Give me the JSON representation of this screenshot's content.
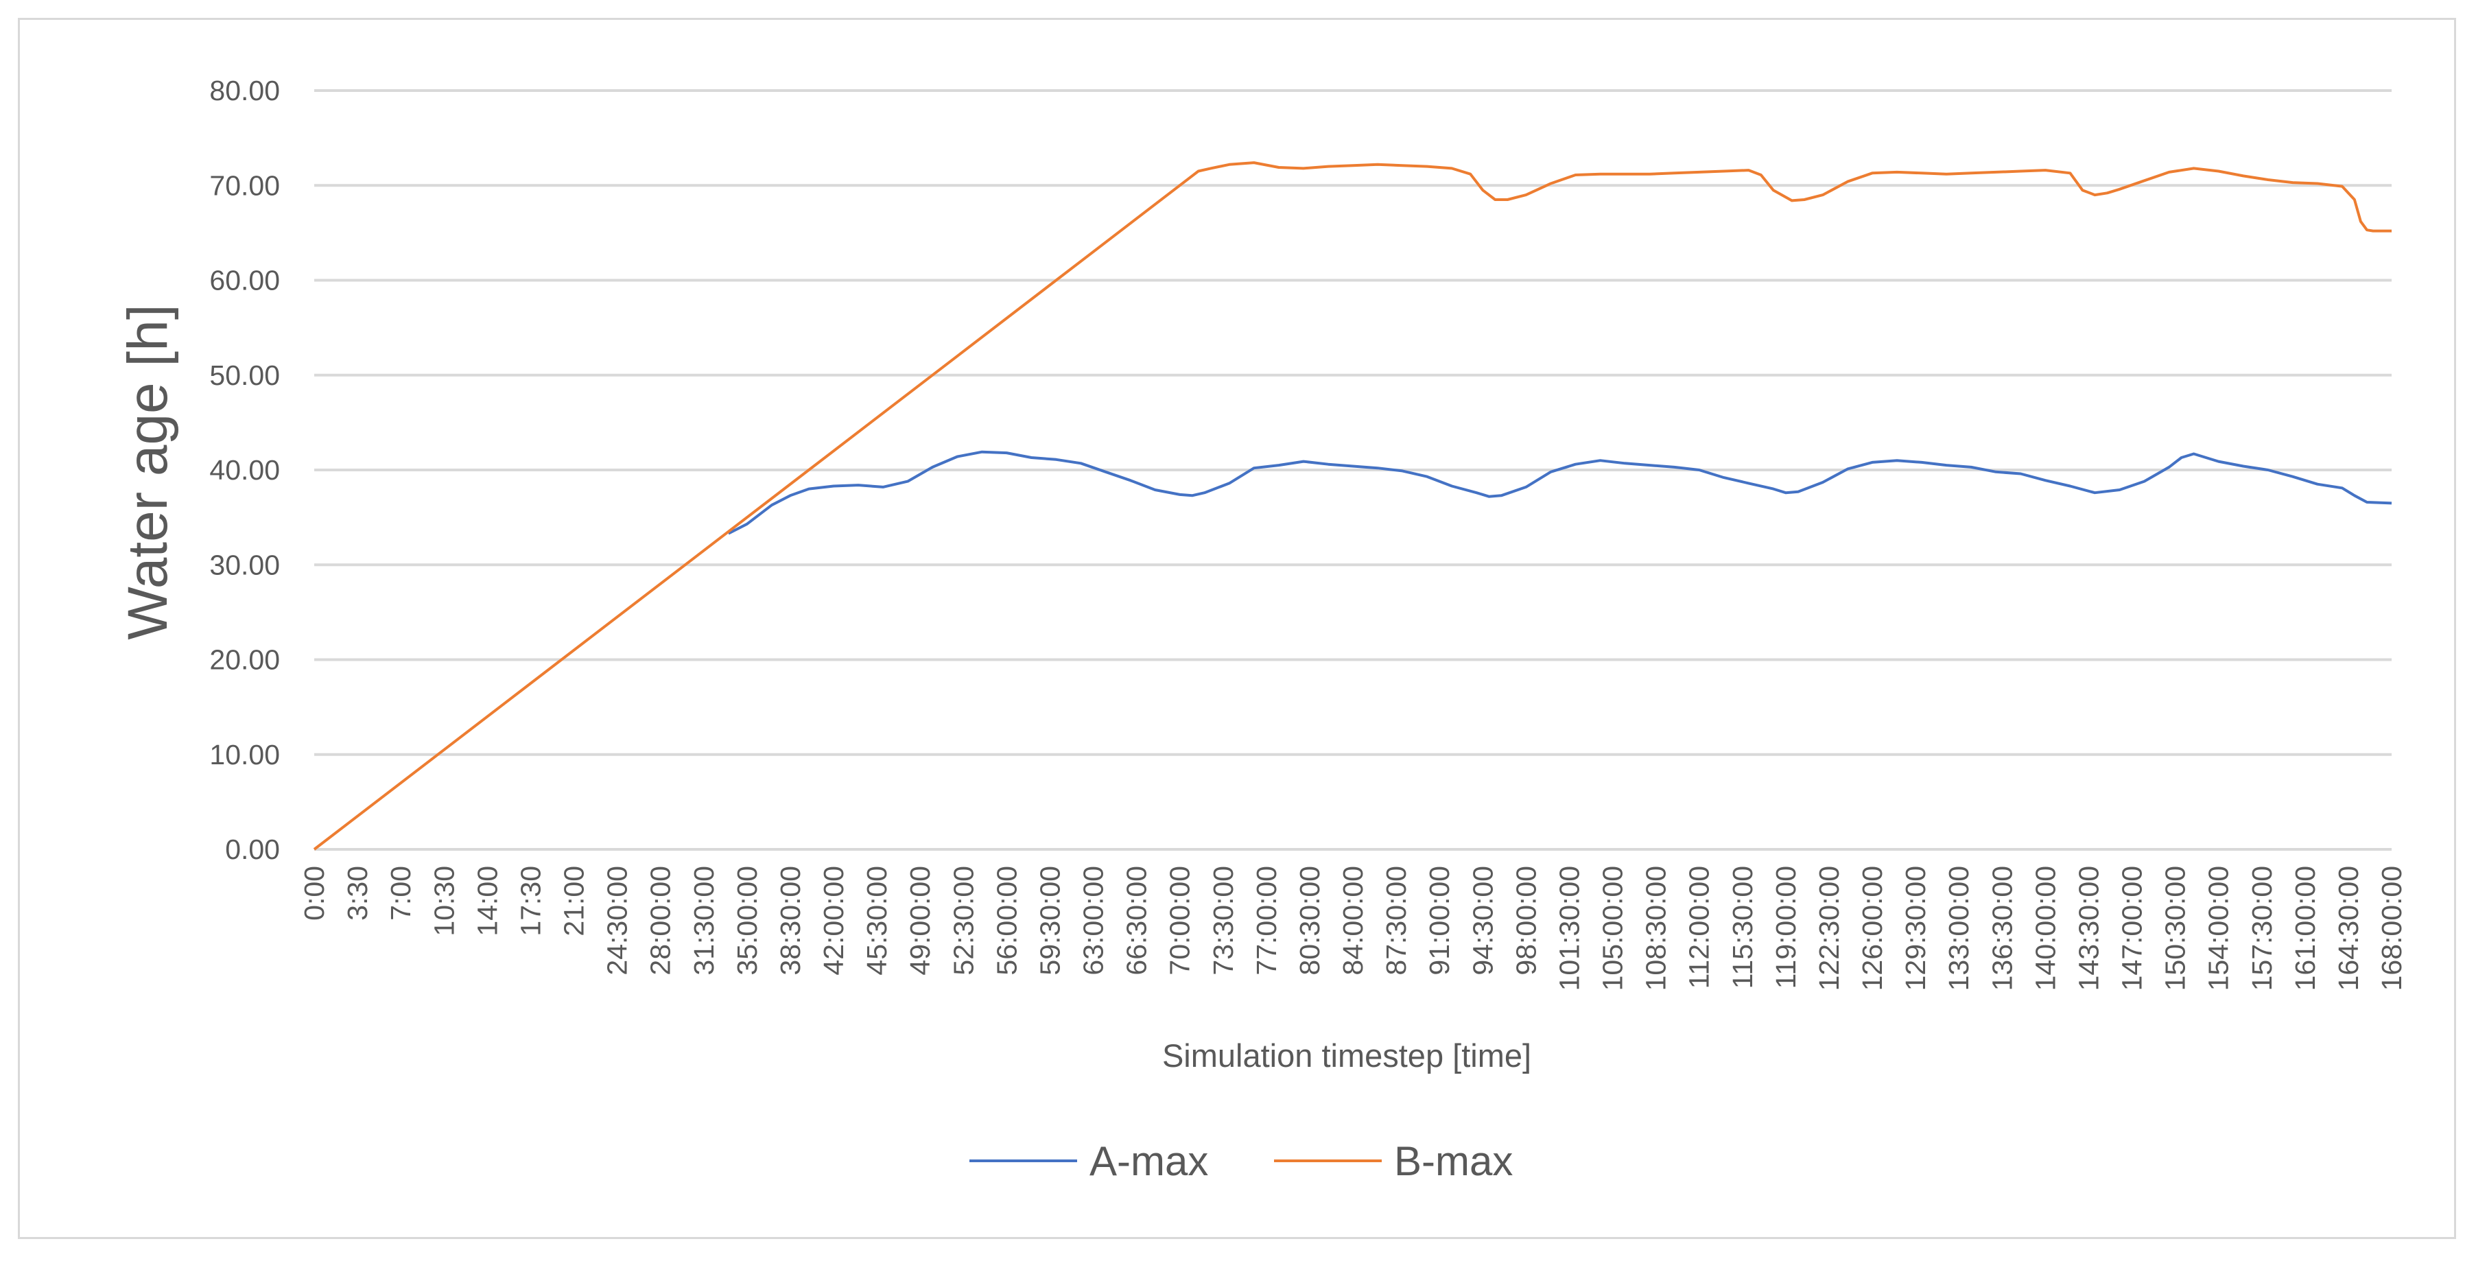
{
  "chart_data": {
    "type": "line",
    "title": "",
    "xlabel": "Simulation timestep [time]",
    "ylabel": "Water age [h]",
    "ylim": [
      0,
      80
    ],
    "ytick_labels": [
      "0.00",
      "10.00",
      "20.00",
      "30.00",
      "40.00",
      "50.00",
      "60.00",
      "70.00",
      "80.00"
    ],
    "xlim": [
      0,
      168
    ],
    "x_tick_hours": [
      0,
      3.5,
      7,
      10.5,
      14,
      17.5,
      21,
      24.5,
      28,
      31.5,
      35,
      38.5,
      42,
      45.5,
      49,
      52.5,
      56,
      59.5,
      63,
      66.5,
      70,
      73.5,
      77,
      80.5,
      84,
      87.5,
      91,
      94.5,
      98,
      101.5,
      105,
      108.5,
      112,
      115.5,
      119,
      122.5,
      126,
      129.5,
      133,
      136.5,
      140,
      143.5,
      147,
      150.5,
      154,
      157.5,
      161,
      164.5,
      168
    ],
    "x_tick_labels": [
      "0:00",
      "3:30",
      "7:00",
      "10:30",
      "14:00",
      "17:30",
      "21:00",
      "24:30:00",
      "28:00:00",
      "31:30:00",
      "35:00:00",
      "38:30:00",
      "42:00:00",
      "45:30:00",
      "49:00:00",
      "52:30:00",
      "56:00:00",
      "59:30:00",
      "63:00:00",
      "66:30:00",
      "70:00:00",
      "73:30:00",
      "77:00:00",
      "80:30:00",
      "84:00:00",
      "87:30:00",
      "91:00:00",
      "94:30:00",
      "98:00:00",
      "101:30:00",
      "105:00:00",
      "108:30:00",
      "112:00:00",
      "115:30:00",
      "119:00:00",
      "122:30:00",
      "126:00:00",
      "129:30:00",
      "133:00:00",
      "136:30:00",
      "140:00:00",
      "143:30:00",
      "147:00:00",
      "150:30:00",
      "154:00:00",
      "157:30:00",
      "161:00:00",
      "164:30:00",
      "168:00:00"
    ],
    "grid": true,
    "legend_position": "bottom",
    "series": [
      {
        "name": "A-max",
        "color": "#4472c4",
        "x": [
          33.5,
          35,
          37,
          38.5,
          40,
          42,
          44,
          46,
          48,
          50,
          52,
          54,
          56,
          58,
          60,
          62,
          64,
          66,
          68,
          70,
          71,
          72,
          74,
          76,
          78,
          80,
          82,
          84,
          86,
          88,
          90,
          92,
          94,
          95,
          96,
          98,
          100,
          102,
          104,
          106,
          108,
          110,
          112,
          114,
          116,
          118,
          119,
          120,
          122,
          124,
          126,
          128,
          130,
          132,
          134,
          136,
          138,
          140,
          142,
          144,
          146,
          148,
          150,
          151,
          152,
          154,
          156,
          158,
          160,
          162,
          164,
          165,
          166,
          168
        ],
        "values": [
          33.3,
          34.3,
          36.3,
          37.3,
          38.0,
          38.3,
          38.4,
          38.2,
          38.8,
          40.3,
          41.4,
          41.9,
          41.8,
          41.3,
          41.1,
          40.7,
          39.8,
          38.9,
          37.9,
          37.4,
          37.3,
          37.6,
          38.6,
          40.2,
          40.5,
          40.9,
          40.6,
          40.4,
          40.2,
          39.9,
          39.3,
          38.3,
          37.6,
          37.2,
          37.3,
          38.2,
          39.8,
          40.6,
          41.0,
          40.7,
          40.5,
          40.3,
          40.0,
          39.2,
          38.6,
          38.0,
          37.6,
          37.7,
          38.7,
          40.1,
          40.8,
          41.0,
          40.8,
          40.5,
          40.3,
          39.8,
          39.6,
          38.9,
          38.3,
          37.6,
          37.9,
          38.8,
          40.3,
          41.3,
          41.7,
          40.9,
          40.4,
          40.0,
          39.3,
          38.5,
          38.1,
          37.3,
          36.6,
          36.5
        ]
      },
      {
        "name": "B-max",
        "color": "#ed7d31",
        "x": [
          0,
          71.5,
          72.5,
          74,
          76,
          78,
          80,
          82,
          84,
          86,
          88,
          90,
          92,
          93.5,
          94.5,
          95.5,
          96.5,
          98,
          100,
          102,
          104,
          106,
          108,
          110,
          112,
          114,
          116,
          117,
          118,
          119.5,
          120.5,
          122,
          124,
          126,
          128,
          130,
          132,
          134,
          136,
          138,
          140,
          142,
          143,
          144,
          145,
          146,
          148,
          150,
          152,
          154,
          156,
          158,
          160,
          162,
          164,
          165,
          165.5,
          166,
          166.5,
          168
        ],
        "values": [
          0,
          71.5,
          71.8,
          72.2,
          72.4,
          71.9,
          71.8,
          72.0,
          72.1,
          72.2,
          72.1,
          72.0,
          71.8,
          71.2,
          69.5,
          68.5,
          68.5,
          69.0,
          70.2,
          71.1,
          71.2,
          71.2,
          71.2,
          71.3,
          71.4,
          71.5,
          71.6,
          71.1,
          69.5,
          68.4,
          68.5,
          69.0,
          70.4,
          71.3,
          71.4,
          71.3,
          71.2,
          71.3,
          71.4,
          71.5,
          71.6,
          71.3,
          69.5,
          69.0,
          69.2,
          69.6,
          70.5,
          71.4,
          71.8,
          71.5,
          71.0,
          70.6,
          70.3,
          70.2,
          69.9,
          68.5,
          66.2,
          65.3,
          65.2,
          65.2
        ]
      }
    ]
  }
}
